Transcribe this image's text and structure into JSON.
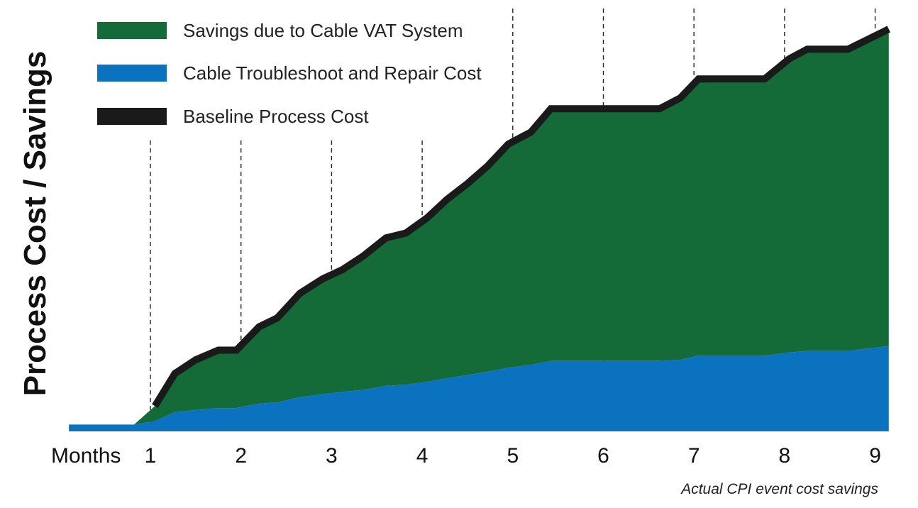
{
  "chart_data": {
    "type": "area",
    "xlabel": "Months",
    "ylabel": "Process Cost / Savings",
    "caption": "Actual CPI event cost savings",
    "x_ticks": [
      "1",
      "2",
      "3",
      "4",
      "5",
      "6",
      "7",
      "8",
      "9"
    ],
    "xlim": [
      0.1,
      9.15
    ],
    "ylim": [
      0,
      1
    ],
    "x": [
      0.1,
      0.72,
      0.82,
      1.05,
      1.27,
      1.5,
      1.75,
      1.95,
      2.2,
      2.4,
      2.65,
      2.9,
      3.12,
      3.35,
      3.6,
      3.82,
      4.05,
      4.27,
      4.5,
      4.72,
      4.95,
      5.2,
      5.42,
      5.62,
      6.0,
      6.62,
      6.85,
      7.05,
      7.3,
      7.78,
      8.05,
      8.25,
      8.7,
      9.15
    ],
    "series": [
      {
        "name": "Cable Troubleshoot and Repair Cost",
        "color": "#0b72bf",
        "values": [
          0.017,
          0.017,
          0.017,
          0.025,
          0.048,
          0.053,
          0.058,
          0.058,
          0.069,
          0.072,
          0.085,
          0.092,
          0.098,
          0.103,
          0.113,
          0.116,
          0.123,
          0.132,
          0.14,
          0.148,
          0.158,
          0.165,
          0.175,
          0.175,
          0.175,
          0.175,
          0.178,
          0.188,
          0.188,
          0.188,
          0.196,
          0.2,
          0.2,
          0.212
        ]
      },
      {
        "name": "Savings due to Cable VAT System",
        "color": "#156b37"
      },
      {
        "name": "Baseline Process Cost",
        "color": "#1a1a1a",
        "values": [
          0.017,
          0.017,
          0.017,
          0.063,
          0.144,
          0.178,
          0.202,
          0.202,
          0.26,
          0.282,
          0.343,
          0.379,
          0.402,
          0.436,
          0.481,
          0.493,
          0.53,
          0.576,
          0.616,
          0.659,
          0.714,
          0.744,
          0.802,
          0.802,
          0.802,
          0.802,
          0.829,
          0.876,
          0.876,
          0.876,
          0.926,
          0.95,
          0.95,
          1.0
        ]
      }
    ],
    "legend": [
      {
        "label": "Savings due to Cable VAT System",
        "color": "#156b37"
      },
      {
        "label": "Cable Troubleshoot and Repair Cost",
        "color": "#0b72bf"
      },
      {
        "label": "Baseline Process Cost",
        "color": "#1a1a1a"
      }
    ],
    "vertical_dashed_lines_at": [
      "1",
      "2",
      "3",
      "4",
      "5",
      "6",
      "7",
      "8",
      "9"
    ],
    "grid": false,
    "legend_placement": "top-left"
  }
}
